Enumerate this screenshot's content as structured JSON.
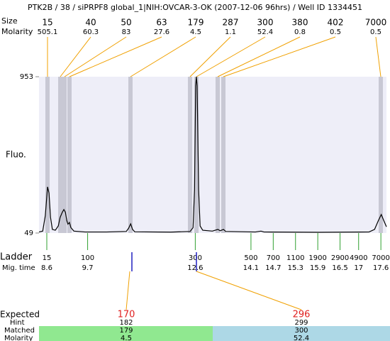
{
  "chart_data": {
    "type": "line",
    "title": "PTK2B / 38 / siPRPF8 global_1|NIH:OVCAR-3-OK (2007-12-06 96hrs) / Well ID 1334451",
    "y_label": "Fluo.",
    "ylim": [
      49,
      953
    ],
    "yticks": [
      49,
      953
    ],
    "xlim": [
      8.39,
      17.75
    ],
    "color": "#000000",
    "x": [
      8.39,
      8.49,
      8.56,
      8.6,
      8.62,
      8.66,
      8.7,
      8.75,
      8.83,
      8.91,
      8.96,
      9.02,
      9.06,
      9.1,
      9.14,
      9.17,
      9.21,
      9.25,
      9.33,
      9.63,
      10.21,
      10.74,
      10.8,
      10.86,
      10.91,
      10.97,
      11.93,
      12.46,
      12.54,
      12.58,
      12.61,
      12.63,
      12.65,
      12.69,
      12.73,
      12.8,
      13.06,
      13.21,
      13.27,
      13.36,
      13.42,
      14.22,
      14.37,
      14.45,
      15.94,
      17.28,
      17.43,
      17.53,
      17.61,
      17.68,
      17.75
    ],
    "values": [
      55,
      60,
      150,
      260,
      316,
      280,
      140,
      70,
      65,
      90,
      140,
      170,
      185,
      170,
      120,
      100,
      110,
      80,
      60,
      55,
      55,
      58,
      75,
      102,
      70,
      56,
      54,
      58,
      80,
      300,
      900,
      953,
      900,
      300,
      90,
      65,
      60,
      70,
      62,
      70,
      58,
      55,
      60,
      55,
      53,
      55,
      70,
      120,
      156,
      120,
      85
    ]
  },
  "peaks": {
    "size_label": "Size",
    "molarity_label": "Molarity",
    "sizes": [
      15,
      40,
      50,
      63,
      179,
      287,
      300,
      380,
      402,
      7000
    ],
    "molarities": [
      505.1,
      60.3,
      83,
      27.6,
      4.5,
      1.1,
      52.4,
      0.8,
      0.5,
      0.5
    ]
  },
  "ladder": {
    "label": "Ladder",
    "time_label": "Mig. time",
    "sizes": [
      15,
      100,
      300,
      500,
      700,
      1100,
      1900,
      2900,
      4900,
      7000
    ],
    "times": [
      8.6,
      9.7,
      12.6,
      14.1,
      14.7,
      15.3,
      15.9,
      16.5,
      17,
      17.6
    ]
  },
  "expected": {
    "expected_label": "Expected",
    "hint_label": "Hint",
    "matched_label": "Matched",
    "molarity_label": "Molarity",
    "columns": [
      {
        "expected": 170,
        "hint": 182,
        "matched": 179,
        "molarity": 4.5
      },
      {
        "expected": 296,
        "hint": 299,
        "matched": 300,
        "molarity": 52.4
      }
    ]
  }
}
